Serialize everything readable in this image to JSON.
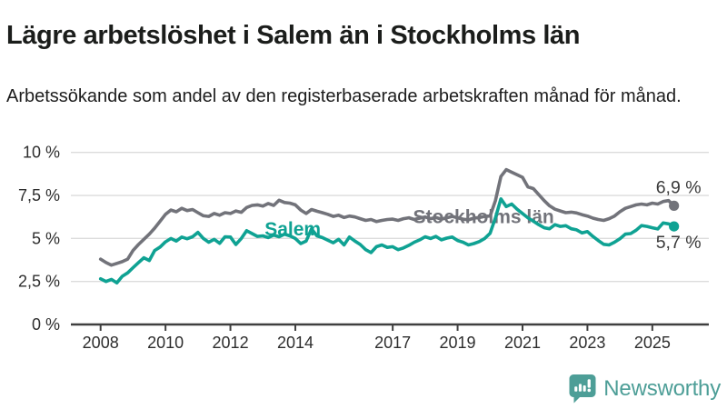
{
  "header": {
    "title": "Lägre arbetslöshet i Salem än i Stockholms län",
    "subtitle": "Arbetssökande som andel av den registerbaserade arbetskraften månad för månad."
  },
  "chart_data": {
    "type": "line",
    "unit": "%",
    "x_start_year": 2008,
    "x_step_months": 2,
    "x_ticks": [
      2008,
      2010,
      2012,
      2014,
      2017,
      2019,
      2021,
      2023,
      2025
    ],
    "y_ticks": [
      {
        "value": 0,
        "label": "0 %"
      },
      {
        "value": 2.5,
        "label": "2,5 %"
      },
      {
        "value": 5,
        "label": "5 %"
      },
      {
        "value": 7.5,
        "label": "7,5 %"
      },
      {
        "value": 10,
        "label": "10 %"
      }
    ],
    "ylim": [
      0,
      10
    ],
    "grid": true,
    "legend_position": "inline-labels",
    "colors": {
      "grid": "#dcdcdc",
      "axis": "#3f3f3f",
      "tick_text": "#2e2e2e",
      "end_label_text": "#3a3a3a"
    },
    "series": [
      {
        "name": "Stockholms län",
        "color": "#72737a",
        "end_label": "6,9 %",
        "end_value": 6.9,
        "end_label_position": "above",
        "label_anchor": {
          "year": 2019.8,
          "value": 6.27
        },
        "values": [
          3.8,
          3.6,
          3.45,
          3.55,
          3.65,
          3.8,
          4.3,
          4.65,
          4.95,
          5.25,
          5.6,
          6.0,
          6.4,
          6.65,
          6.55,
          6.75,
          6.62,
          6.68,
          6.5,
          6.32,
          6.28,
          6.45,
          6.35,
          6.5,
          6.45,
          6.6,
          6.52,
          6.8,
          6.92,
          6.95,
          6.88,
          7.03,
          6.92,
          7.22,
          7.09,
          7.05,
          6.95,
          6.65,
          6.45,
          6.68,
          6.58,
          6.5,
          6.4,
          6.28,
          6.35,
          6.22,
          6.3,
          6.25,
          6.15,
          6.05,
          6.1,
          5.98,
          6.05,
          6.1,
          6.12,
          6.05,
          6.15,
          6.2,
          6.1,
          6.18,
          6.25,
          6.15,
          6.22,
          6.12,
          6.2,
          6.28,
          6.2,
          6.12,
          6.08,
          6.18,
          6.22,
          6.28,
          6.3,
          7.2,
          8.6,
          9.0,
          8.85,
          8.7,
          8.55,
          8.0,
          7.9,
          7.55,
          7.2,
          6.9,
          6.7,
          6.6,
          6.5,
          6.53,
          6.48,
          6.38,
          6.3,
          6.18,
          6.1,
          6.05,
          6.15,
          6.3,
          6.55,
          6.75,
          6.85,
          6.95,
          7.0,
          6.95,
          7.05,
          7.0,
          7.15,
          7.2,
          6.9
        ]
      },
      {
        "name": "Salem",
        "color": "#0fa293",
        "end_label": "5,7 %",
        "end_value": 5.7,
        "end_label_position": "below",
        "label_anchor": {
          "year": 2013.92,
          "value": 5.55
        },
        "values": [
          2.65,
          2.5,
          2.62,
          2.42,
          2.8,
          3.0,
          3.3,
          3.6,
          3.88,
          3.72,
          4.3,
          4.5,
          4.8,
          5.0,
          4.85,
          5.08,
          4.98,
          5.1,
          5.35,
          5.0,
          4.78,
          4.95,
          4.72,
          5.1,
          5.08,
          4.65,
          5.0,
          5.45,
          5.28,
          5.12,
          5.15,
          5.05,
          5.2,
          5.1,
          5.25,
          5.15,
          5.0,
          4.7,
          4.85,
          5.55,
          5.15,
          5.05,
          4.9,
          4.75,
          4.95,
          4.62,
          5.08,
          4.85,
          4.65,
          4.35,
          4.18,
          4.52,
          4.62,
          4.48,
          4.52,
          4.35,
          4.45,
          4.6,
          4.78,
          4.92,
          5.1,
          5.0,
          5.12,
          4.92,
          5.02,
          5.08,
          4.88,
          4.78,
          4.62,
          4.7,
          4.82,
          5.0,
          5.3,
          6.2,
          7.3,
          6.85,
          7.0,
          6.7,
          6.45,
          6.2,
          6.0,
          5.8,
          5.62,
          5.56,
          5.8,
          5.7,
          5.74,
          5.56,
          5.5,
          5.32,
          5.4,
          5.12,
          4.88,
          4.66,
          4.62,
          4.78,
          4.98,
          5.25,
          5.28,
          5.48,
          5.75,
          5.7,
          5.62,
          5.55,
          5.9,
          5.85,
          5.7
        ]
      }
    ]
  },
  "branding": {
    "logo_text": "Newsworthy",
    "logo_color": "#4d9e97",
    "logo_icon": "bar-chart-speech-bubble-icon"
  }
}
